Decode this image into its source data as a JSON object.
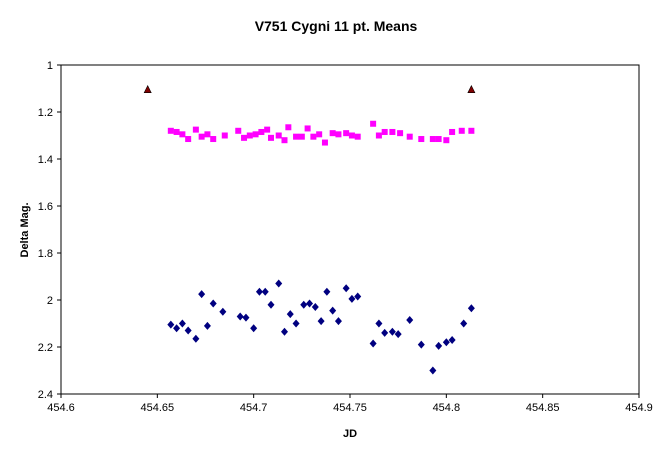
{
  "chart_data": {
    "type": "scatter",
    "title": "V751 Cygni 11 pt. Means",
    "xlabel": "JD",
    "ylabel": "Delta Mag.",
    "xlim": [
      454.6,
      454.9
    ],
    "ylim": [
      1,
      2.4
    ],
    "y_inverted": true,
    "grid": false,
    "legend": "none",
    "x_ticks": [
      "454.6",
      "454.65",
      "454.7",
      "454.75",
      "454.8",
      "454.85",
      "454.9"
    ],
    "y_ticks": [
      "1",
      "1.2",
      "1.4",
      "1.6",
      "1.8",
      "2",
      "2.2",
      "2.4"
    ],
    "series": [
      {
        "marker": "triangle",
        "color": "#800000",
        "points": [
          [
            454.645,
            1.105
          ],
          [
            454.813,
            1.105
          ]
        ]
      },
      {
        "marker": "square",
        "color": "#ff00ff",
        "points": [
          [
            454.657,
            1.28
          ],
          [
            454.66,
            1.285
          ],
          [
            454.663,
            1.295
          ],
          [
            454.666,
            1.315
          ],
          [
            454.67,
            1.275
          ],
          [
            454.673,
            1.305
          ],
          [
            454.676,
            1.295
          ],
          [
            454.679,
            1.315
          ],
          [
            454.685,
            1.3
          ],
          [
            454.692,
            1.28
          ],
          [
            454.695,
            1.31
          ],
          [
            454.698,
            1.3
          ],
          [
            454.701,
            1.295
          ],
          [
            454.704,
            1.285
          ],
          [
            454.707,
            1.275
          ],
          [
            454.709,
            1.31
          ],
          [
            454.713,
            1.3
          ],
          [
            454.716,
            1.32
          ],
          [
            454.718,
            1.265
          ],
          [
            454.722,
            1.305
          ],
          [
            454.725,
            1.305
          ],
          [
            454.728,
            1.27
          ],
          [
            454.731,
            1.305
          ],
          [
            454.734,
            1.295
          ],
          [
            454.737,
            1.33
          ],
          [
            454.741,
            1.29
          ],
          [
            454.744,
            1.295
          ],
          [
            454.748,
            1.29
          ],
          [
            454.751,
            1.3
          ],
          [
            454.754,
            1.305
          ],
          [
            454.762,
            1.25
          ],
          [
            454.765,
            1.3
          ],
          [
            454.768,
            1.285
          ],
          [
            454.772,
            1.285
          ],
          [
            454.776,
            1.29
          ],
          [
            454.781,
            1.305
          ],
          [
            454.787,
            1.315
          ],
          [
            454.793,
            1.315
          ],
          [
            454.796,
            1.315
          ],
          [
            454.8,
            1.32
          ],
          [
            454.803,
            1.285
          ],
          [
            454.808,
            1.28
          ],
          [
            454.813,
            1.28
          ]
        ]
      },
      {
        "marker": "diamond",
        "color": "#000080",
        "points": [
          [
            454.657,
            2.105
          ],
          [
            454.66,
            2.12
          ],
          [
            454.663,
            2.1
          ],
          [
            454.666,
            2.13
          ],
          [
            454.67,
            2.165
          ],
          [
            454.673,
            1.975
          ],
          [
            454.676,
            2.11
          ],
          [
            454.679,
            2.015
          ],
          [
            454.684,
            2.05
          ],
          [
            454.693,
            2.07
          ],
          [
            454.696,
            2.075
          ],
          [
            454.7,
            2.12
          ],
          [
            454.703,
            1.965
          ],
          [
            454.706,
            1.965
          ],
          [
            454.709,
            2.02
          ],
          [
            454.713,
            1.93
          ],
          [
            454.716,
            2.135
          ],
          [
            454.719,
            2.06
          ],
          [
            454.722,
            2.1
          ],
          [
            454.726,
            2.02
          ],
          [
            454.729,
            2.015
          ],
          [
            454.732,
            2.03
          ],
          [
            454.735,
            2.09
          ],
          [
            454.738,
            1.965
          ],
          [
            454.741,
            2.045
          ],
          [
            454.744,
            2.09
          ],
          [
            454.748,
            1.95
          ],
          [
            454.751,
            1.995
          ],
          [
            454.754,
            1.985
          ],
          [
            454.762,
            2.185
          ],
          [
            454.765,
            2.1
          ],
          [
            454.768,
            2.14
          ],
          [
            454.772,
            2.135
          ],
          [
            454.775,
            2.145
          ],
          [
            454.781,
            2.085
          ],
          [
            454.787,
            2.19
          ],
          [
            454.793,
            2.3
          ],
          [
            454.796,
            2.195
          ],
          [
            454.8,
            2.18
          ],
          [
            454.803,
            2.17
          ],
          [
            454.809,
            2.1
          ],
          [
            454.813,
            2.035
          ]
        ]
      }
    ]
  }
}
